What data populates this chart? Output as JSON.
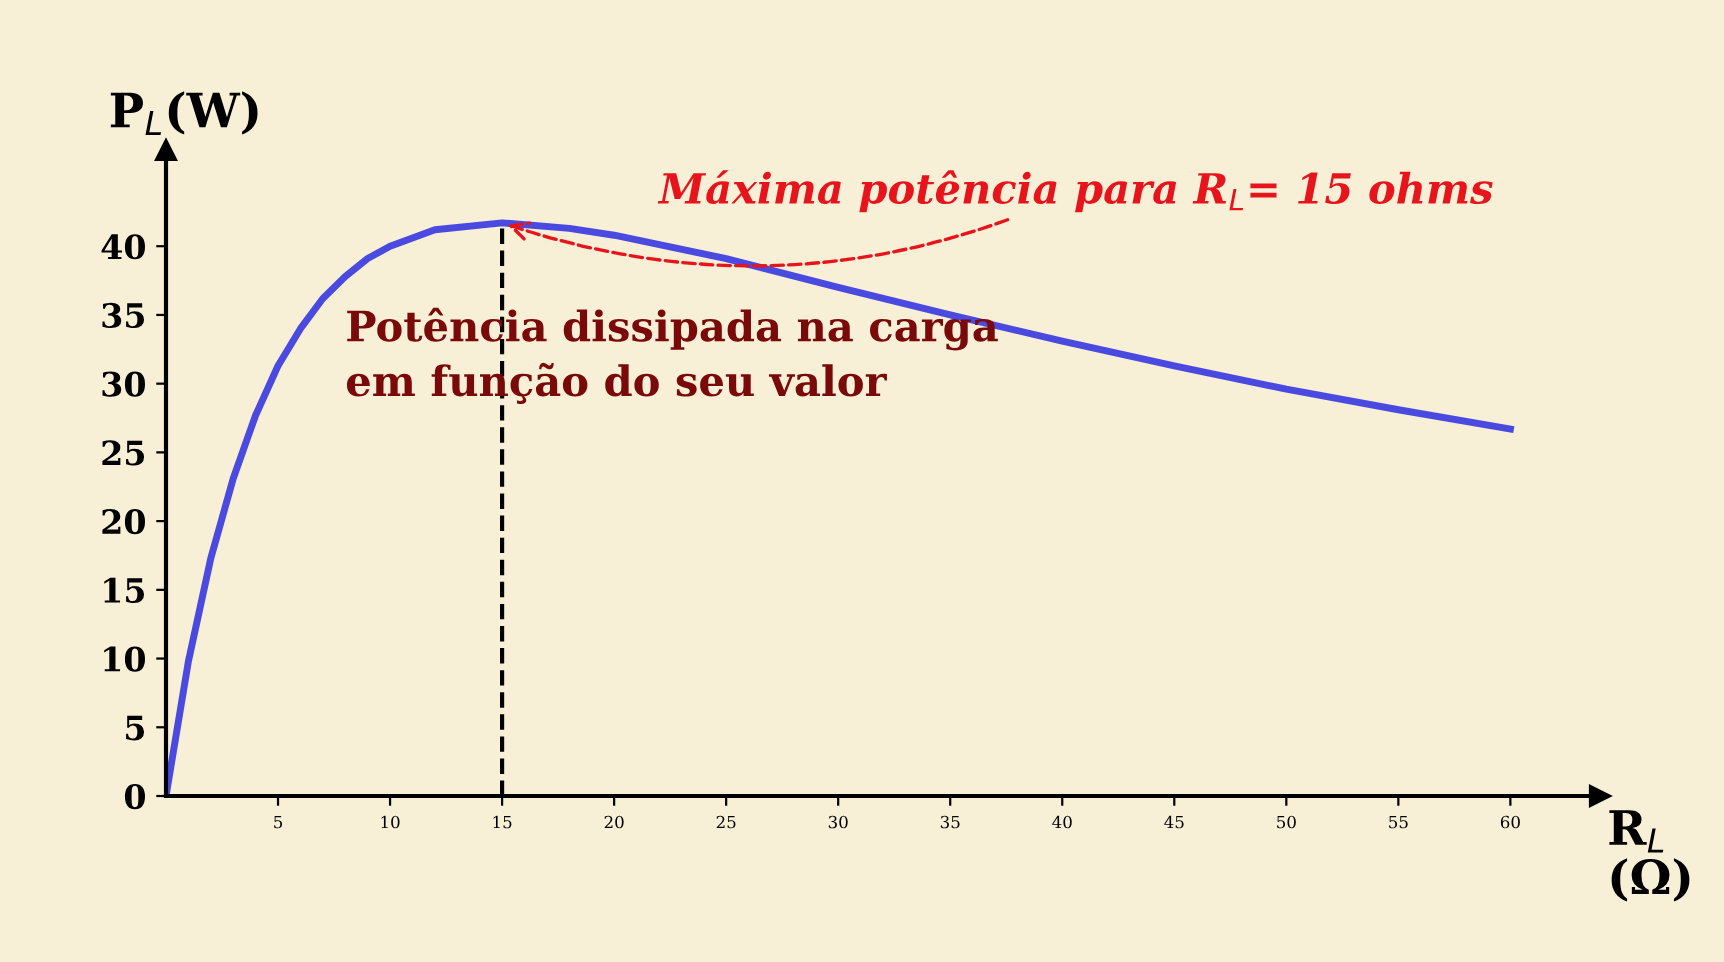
{
  "chart_data": {
    "type": "line",
    "x": [
      0,
      1,
      2,
      3,
      4,
      5,
      6,
      7,
      8,
      9,
      10,
      12,
      15,
      18,
      20,
      25,
      30,
      35,
      40,
      45,
      50,
      55,
      60
    ],
    "series": [
      {
        "color": "#4a4ae0",
        "values": [
          0,
          9.8,
          17.3,
          23.1,
          27.7,
          31.3,
          34.0,
          36.2,
          37.8,
          39.1,
          40.0,
          41.2,
          41.7,
          41.3,
          40.8,
          39.1,
          37.0,
          35.0,
          33.1,
          31.3,
          29.6,
          28.1,
          26.7
        ]
      }
    ],
    "xlim": [
      0,
      64
    ],
    "ylim": [
      0,
      47
    ],
    "xticks": [
      5,
      10,
      15,
      20,
      25,
      30,
      35,
      40,
      45,
      50,
      55,
      60
    ],
    "yticks": [
      0,
      5,
      10,
      15,
      20,
      25,
      30,
      35,
      40
    ],
    "xlabel": "R$_{L}$\n(Ω)",
    "ylabel": "P$_{L}$(W)",
    "ref_lines": [
      {
        "axis": "x",
        "value": 15,
        "color": "#000000",
        "line_style": "dashed"
      }
    ],
    "annotations": [
      {
        "text": "Máxima potência para R$_{L}$= 15 ohms",
        "x": 15,
        "y": 41.7
      },
      "Potência dissipada na carga\nem função do seu valor"
    ],
    "grid": false,
    "marker": "none",
    "line_style": "solid"
  }
}
